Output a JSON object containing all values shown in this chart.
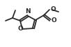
{
  "bg_color": "#ffffff",
  "bond_color": "#2a2a2a",
  "N_color": "#2a2a2a",
  "O_color": "#2a2a2a",
  "line_width": 1.3,
  "font_size": 6.5,
  "fig_width": 1.02,
  "fig_height": 0.68,
  "dpi": 100,
  "xlim": [
    0,
    10.2
  ],
  "ylim": [
    0,
    6.8
  ]
}
